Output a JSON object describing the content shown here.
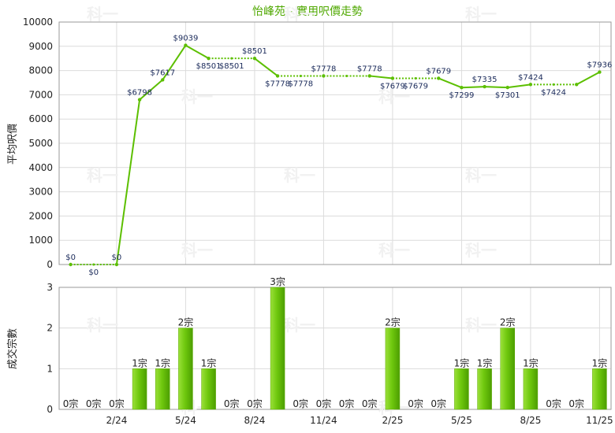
{
  "chart_data": [
    {
      "type": "line",
      "title": "怡峰苑 - 實用呎價走勢",
      "ylabel": "平均呎價",
      "ylim": [
        0,
        10000
      ],
      "yticks": [
        0,
        1000,
        2000,
        3000,
        4000,
        5000,
        6000,
        7000,
        8000,
        9000,
        10000
      ],
      "x_tick_labels": [
        "2/24",
        "5/24",
        "8/24",
        "11/24",
        "2/25",
        "5/25",
        "8/25",
        "11/25"
      ],
      "series": [
        {
          "values": [
            0,
            0,
            0,
            6798,
            7617,
            9039,
            8501,
            8501,
            8501,
            7778,
            7778,
            7778,
            7778,
            7778,
            7679,
            7679,
            7679,
            7299,
            7335,
            7301,
            7424,
            7424,
            7424,
            7936
          ],
          "labels": [
            "$0",
            "$0",
            "$0",
            "$6798",
            "$7617",
            "$9039",
            "$8501",
            "$8501",
            "$8501",
            "$7778",
            "$7778",
            "$7778",
            "$7778",
            "$7778",
            "$7679",
            "$7679",
            "$7679",
            "$7299",
            "$7335",
            "$7301",
            "$7424",
            "$7424",
            "$7424",
            "$7936"
          ],
          "label_shown": [
            true,
            true,
            true,
            true,
            true,
            true,
            true,
            true,
            true,
            true,
            true,
            true,
            false,
            true,
            true,
            true,
            true,
            true,
            true,
            true,
            true,
            true,
            false,
            true
          ],
          "interpolated": [
            false,
            true,
            false,
            false,
            false,
            false,
            false,
            true,
            false,
            false,
            true,
            false,
            true,
            false,
            false,
            true,
            false,
            false,
            false,
            false,
            false,
            true,
            false,
            false
          ]
        }
      ],
      "line_color": "#5cbf00",
      "watermark": "科一"
    },
    {
      "type": "bar",
      "ylabel": "成交宗數",
      "ylim": [
        0,
        3
      ],
      "yticks": [
        0,
        1,
        2,
        3
      ],
      "x_tick_labels": [
        "2/24",
        "5/24",
        "8/24",
        "11/24",
        "2/25",
        "5/25",
        "8/25",
        "11/25"
      ],
      "series": [
        {
          "values": [
            0,
            0,
            0,
            1,
            1,
            2,
            1,
            0,
            0,
            3,
            0,
            0,
            0,
            0,
            2,
            0,
            0,
            1,
            1,
            2,
            1,
            0,
            0,
            1
          ],
          "labels": [
            "0宗",
            "0宗",
            "0宗",
            "1宗",
            "1宗",
            "2宗",
            "1宗",
            "0宗",
            "0宗",
            "3宗",
            "0宗",
            "0宗",
            "0宗",
            "0宗",
            "2宗",
            "0宗",
            "0宗",
            "1宗",
            "1宗",
            "2宗",
            "1宗",
            "0宗",
            "0宗",
            "1宗"
          ]
        }
      ],
      "bar_color": "#7ccf1a",
      "watermark": "科一"
    }
  ]
}
